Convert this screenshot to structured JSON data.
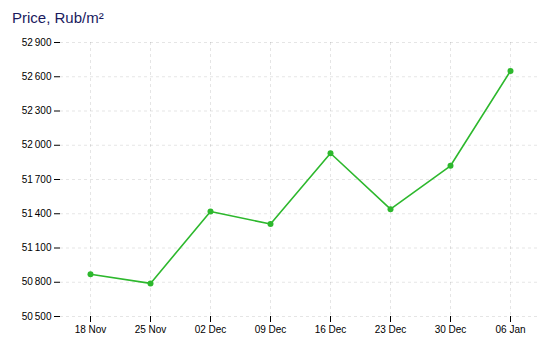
{
  "chart_data": {
    "type": "line",
    "title": "Price, Rub/m²",
    "categories": [
      "18 Nov",
      "25 Nov",
      "02 Dec",
      "09 Dec",
      "16 Dec",
      "23 Dec",
      "30 Dec",
      "06 Jan"
    ],
    "values": [
      50870,
      50790,
      51420,
      51310,
      51930,
      51440,
      51820,
      52650
    ],
    "color": "#2db82d",
    "marker": "circle",
    "ylim": [
      50500,
      52900
    ],
    "yticks": [
      {
        "value": 50500,
        "label": "50 500"
      },
      {
        "value": 50800,
        "label": "50 800"
      },
      {
        "value": 51100,
        "label": "51 100"
      },
      {
        "value": 51400,
        "label": "51 400"
      },
      {
        "value": 51700,
        "label": "51 700"
      },
      {
        "value": 52000,
        "label": "52 000"
      },
      {
        "value": 52300,
        "label": "52 300"
      },
      {
        "value": 52600,
        "label": "52 600"
      },
      {
        "value": 52900,
        "label": "52 900"
      }
    ],
    "grid": true
  }
}
